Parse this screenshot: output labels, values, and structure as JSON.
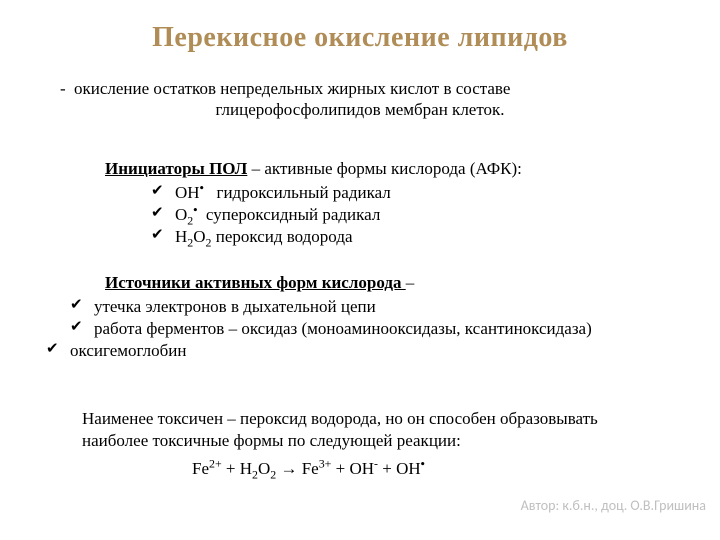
{
  "title": "Перекисное окисление липидов",
  "subtitle_l1_prefix": "-   ",
  "subtitle_l1": "окисление остатков непредельных жирных кислот в составе",
  "subtitle_l2": "глицерофосфолипидов мембран клеток.",
  "initiators_lead_u": "Инициаторы ПОЛ",
  "initiators_lead_rest": " – активные формы кислорода (АФК):",
  "init_items": {
    "a": "ОН˙   гидроксильный радикал",
    "b": "О₂˙  супероксидный радикал",
    "c": "Н₂О₂ пероксид водорода"
  },
  "sources_head_u": "Источники активных форм кислорода ",
  "sources_head_rest": "–",
  "src_items": {
    "a": "утечка электронов в дыхательной цепи",
    "b": "работа ферментов – оксидаз (моноаминооксидазы, ксантиноксидаза)",
    "c": "оксигемоглобин"
  },
  "bottom_text": "Наименее токсичен – пероксид водорода, но он способен образовывать наиболее токсичные формы по следующей реакции:",
  "reaction": "Fe²⁺ + H₂O₂ → Fe³⁺ + OH⁻ + OH˙",
  "author": "Автор: к.б.н., доц. О.В.Гришина"
}
